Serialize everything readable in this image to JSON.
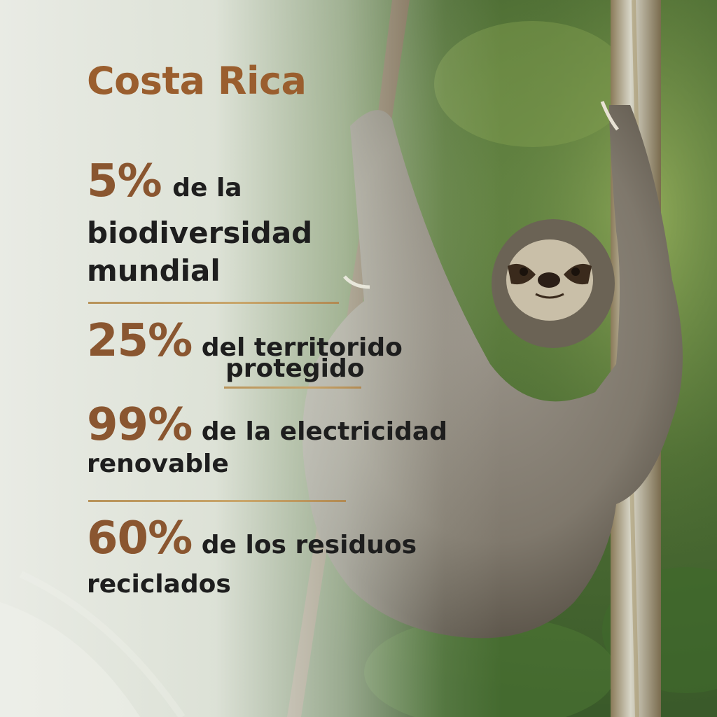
{
  "title": "Costa Rica",
  "stats": [
    {
      "value": "5%",
      "text1": "de la",
      "text2": "biodiversidad",
      "text3": "mundial"
    },
    {
      "value": "25%",
      "text1": "del territorido",
      "text2": "protegido"
    },
    {
      "value": "99%",
      "text1": "de la electricidad",
      "text2": "renovable"
    },
    {
      "value": "60%",
      "text1": "de los residuos",
      "text2": "reciclados"
    }
  ],
  "colors": {
    "accent": "#9a5e2e",
    "number": "#8a5630",
    "rule": "#c9a66b",
    "text": "#1e1e1e"
  }
}
